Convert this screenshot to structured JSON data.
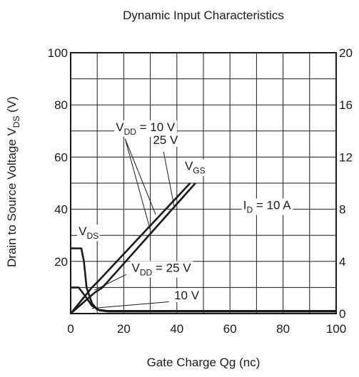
{
  "chart_data": {
    "type": "line",
    "title": "Dynamic Input Characteristics",
    "xlabel": "Gate Charge  Qg  (nc)",
    "ylabel": {
      "main": "Drain to Source Voltage  V",
      "sub": "DS",
      "unit": "  (V)"
    },
    "xlim": [
      0,
      100
    ],
    "ylim": [
      0,
      100
    ],
    "y2lim": [
      0,
      20
    ],
    "grid": true,
    "x_ticks": [
      "0",
      "20",
      "40",
      "60",
      "80",
      "100"
    ],
    "x_tick_values": [
      0,
      20,
      40,
      60,
      80,
      100
    ],
    "y_ticks": [
      "20",
      "40",
      "60",
      "80",
      "100"
    ],
    "y_tick_values": [
      20,
      40,
      60,
      80,
      100
    ],
    "y2_ticks": [
      "0",
      "4",
      "8",
      "12",
      "16",
      "20"
    ],
    "y2_tick_values": [
      0,
      4,
      8,
      12,
      16,
      20
    ],
    "series": [
      {
        "name": "V_DS (V_DD = 25 V)",
        "points": [
          [
            0,
            25
          ],
          [
            4,
            25
          ],
          [
            5,
            20
          ],
          [
            6,
            10
          ],
          [
            8,
            4
          ],
          [
            10,
            1.5
          ],
          [
            14,
            1
          ],
          [
            100,
            1
          ]
        ]
      },
      {
        "name": "V_DS (V_DD = 10 V)",
        "points": [
          [
            0,
            10
          ],
          [
            3,
            10
          ],
          [
            6,
            6
          ],
          [
            8,
            3
          ],
          [
            11,
            1.2
          ],
          [
            14,
            0.8
          ],
          [
            100,
            0.8
          ]
        ]
      },
      {
        "name": "V_GS (V_DD = 10 V)",
        "points": [
          [
            0,
            0
          ],
          [
            8,
            10
          ],
          [
            10,
            12
          ],
          [
            45,
            50
          ]
        ]
      },
      {
        "name": "V_GS (V_DD = 25 V)",
        "points": [
          [
            0,
            0
          ],
          [
            9,
            8
          ],
          [
            12,
            10
          ],
          [
            47,
            50
          ]
        ]
      }
    ],
    "annotations": [
      {
        "parts": [
          {
            "t": "V"
          },
          {
            "t": "DD",
            "sub": true
          },
          {
            "t": " = 10 V"
          }
        ],
        "x": 17,
        "y": 70
      },
      {
        "parts": [
          {
            "t": "25 V"
          }
        ],
        "x": 31,
        "y": 65
      },
      {
        "parts": [
          {
            "t": "V"
          },
          {
            "t": "GS",
            "sub": true
          }
        ],
        "x": 43,
        "y": 55
      },
      {
        "parts": [
          {
            "t": "I"
          },
          {
            "t": "D",
            "sub": true
          },
          {
            "t": " = 10 A"
          }
        ],
        "x": 65,
        "y": 40
      },
      {
        "parts": [
          {
            "t": "V"
          },
          {
            "t": "DS",
            "sub": true
          }
        ],
        "x": 3,
        "y": 30
      },
      {
        "parts": [
          {
            "t": "V"
          },
          {
            "t": "DD",
            "sub": true
          },
          {
            "t": " = 25 V"
          }
        ],
        "x": 23,
        "y": 16
      },
      {
        "parts": [
          {
            "t": "10 V"
          }
        ],
        "x": 39,
        "y": 5.5
      }
    ],
    "leaders": [
      {
        "from": [
          20.5,
          67
        ],
        "to": [
          30,
          32
        ]
      },
      {
        "from": [
          20.5,
          67
        ],
        "to": [
          32,
          38
        ]
      },
      {
        "from": [
          35,
          62
        ],
        "to": [
          39,
          41
        ]
      },
      {
        "from": [
          21,
          15
        ],
        "to": [
          9,
          9
        ]
      },
      {
        "from": [
          37,
          4.5
        ],
        "to": [
          8,
          2
        ]
      }
    ]
  }
}
